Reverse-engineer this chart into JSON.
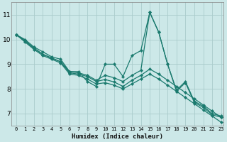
{
  "xlabel": "Humidex (Indice chaleur)",
  "bg_color": "#cce8e8",
  "line_color": "#1a7a6e",
  "grid_color": "#aacccc",
  "xlim_min": -0.5,
  "xlim_max": 23.3,
  "ylim_min": 6.5,
  "ylim_max": 11.5,
  "yticks": [
    7,
    8,
    9,
    10,
    11
  ],
  "xticks": [
    0,
    1,
    2,
    3,
    4,
    5,
    6,
    7,
    8,
    9,
    10,
    11,
    12,
    13,
    14,
    15,
    16,
    17,
    18,
    19,
    20,
    21,
    22,
    23
  ],
  "series": [
    [
      10.2,
      10.0,
      9.7,
      9.5,
      9.3,
      9.2,
      8.7,
      8.7,
      8.3,
      8.1,
      9.0,
      9.0,
      8.5,
      9.35,
      9.55,
      11.1,
      10.3,
      9.0,
      7.95,
      8.3,
      7.5,
      7.3,
      7.0,
      6.9
    ],
    [
      10.2,
      9.95,
      9.65,
      9.4,
      9.25,
      9.1,
      8.7,
      8.65,
      8.55,
      8.35,
      8.55,
      8.45,
      8.3,
      8.55,
      8.75,
      11.1,
      10.3,
      9.0,
      7.9,
      8.25,
      7.45,
      7.25,
      6.95,
      6.85
    ],
    [
      10.2,
      9.95,
      9.65,
      9.4,
      9.25,
      9.1,
      8.65,
      8.6,
      8.5,
      8.3,
      8.38,
      8.28,
      8.1,
      8.35,
      8.55,
      8.8,
      8.6,
      8.35,
      8.1,
      7.85,
      7.6,
      7.35,
      7.1,
      6.85
    ],
    [
      10.2,
      9.9,
      9.6,
      9.35,
      9.2,
      9.05,
      8.6,
      8.55,
      8.4,
      8.2,
      8.25,
      8.15,
      8.0,
      8.2,
      8.4,
      8.6,
      8.4,
      8.15,
      7.9,
      7.65,
      7.4,
      7.15,
      6.9,
      6.65
    ]
  ]
}
